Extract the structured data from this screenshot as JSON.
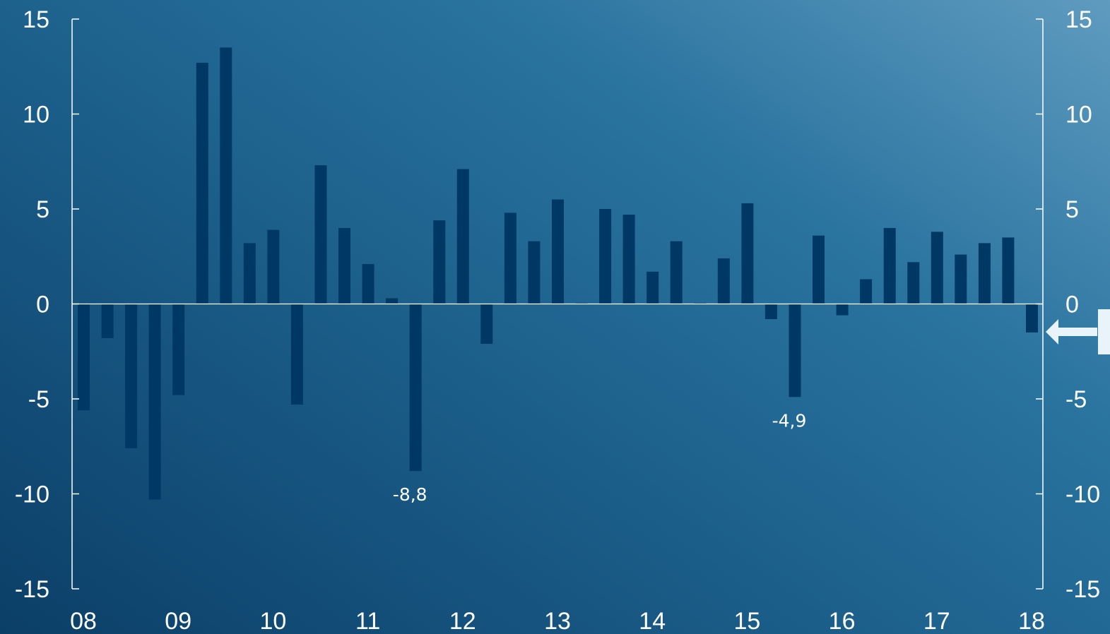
{
  "chart_data": {
    "type": "bar",
    "title": "",
    "xlabel": "",
    "ylabel": "",
    "ylim": [
      -15,
      15
    ],
    "yticks": [
      15,
      10,
      5,
      0,
      -5,
      -10,
      -15
    ],
    "ytick_labels": [
      "15",
      "10",
      "5",
      "0",
      "-5",
      "-10",
      "-15"
    ],
    "x_tick_labels": [
      "08",
      "09",
      "10",
      "11",
      "12",
      "13",
      "14",
      "15",
      "16",
      "17",
      "18"
    ],
    "bar_color": "#003865",
    "grid": false,
    "series": [
      {
        "values": [
          -5.6,
          -1.8,
          -7.6,
          -10.3,
          -4.8,
          12.7,
          13.5,
          3.2,
          3.9,
          -5.3,
          7.3,
          4.0,
          2.1,
          0.3,
          -8.8,
          4.4,
          7.1,
          -2.1,
          4.8,
          3.3,
          5.5,
          0.05,
          5.0,
          4.7,
          1.7,
          3.3,
          0.05,
          2.4,
          5.3,
          -0.8,
          -4.9,
          3.6,
          -0.6,
          1.3,
          4.0,
          2.2,
          3.8,
          2.6,
          3.2,
          3.5,
          -1.5
        ]
      }
    ],
    "annotations": [
      {
        "bar_index": 14,
        "text": "-8,8"
      },
      {
        "bar_index": 30,
        "text": "-4,9"
      }
    ]
  }
}
